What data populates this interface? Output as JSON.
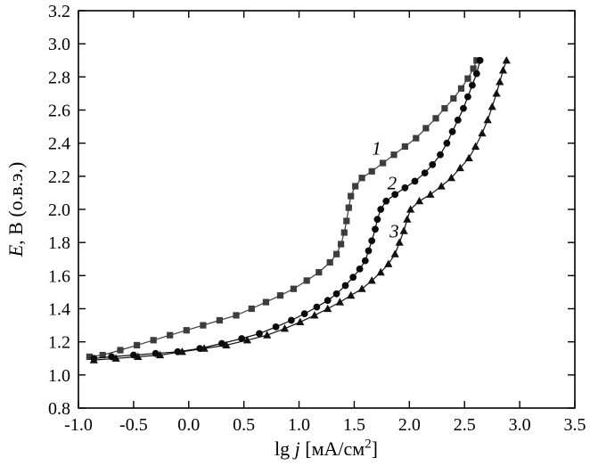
{
  "chart_data": {
    "type": "line",
    "title": "",
    "xlabel": "lg j [мА/см2]",
    "ylabel": "E, В (о.в.э.)",
    "xlim": [
      -1.0,
      3.5
    ],
    "ylim": [
      0.8,
      3.2
    ],
    "xticks": [
      -1.0,
      -0.5,
      0.0,
      0.5,
      1.0,
      1.5,
      2.0,
      2.5,
      3.0,
      3.5
    ],
    "yticks": [
      0.8,
      1.0,
      1.2,
      1.4,
      1.6,
      1.8,
      2.0,
      2.2,
      2.4,
      2.6,
      2.8,
      3.0,
      3.2
    ],
    "grid": false,
    "legend": "none",
    "series": [
      {
        "name": "1",
        "marker": "square",
        "color": "#3d3d3d",
        "points": [
          [
            -0.9,
            1.11
          ],
          [
            -0.78,
            1.12
          ],
          [
            -0.62,
            1.15
          ],
          [
            -0.47,
            1.18
          ],
          [
            -0.32,
            1.21
          ],
          [
            -0.17,
            1.24
          ],
          [
            -0.02,
            1.27
          ],
          [
            0.13,
            1.3
          ],
          [
            0.28,
            1.33
          ],
          [
            0.43,
            1.36
          ],
          [
            0.57,
            1.4
          ],
          [
            0.7,
            1.44
          ],
          [
            0.83,
            1.48
          ],
          [
            0.95,
            1.52
          ],
          [
            1.07,
            1.57
          ],
          [
            1.18,
            1.62
          ],
          [
            1.28,
            1.68
          ],
          [
            1.34,
            1.73
          ],
          [
            1.38,
            1.79
          ],
          [
            1.41,
            1.86
          ],
          [
            1.43,
            1.93
          ],
          [
            1.45,
            2.01
          ],
          [
            1.47,
            2.08
          ],
          [
            1.51,
            2.14
          ],
          [
            1.57,
            2.19
          ],
          [
            1.66,
            2.23
          ],
          [
            1.76,
            2.28
          ],
          [
            1.86,
            2.33
          ],
          [
            1.96,
            2.38
          ],
          [
            2.06,
            2.43
          ],
          [
            2.15,
            2.49
          ],
          [
            2.24,
            2.55
          ],
          [
            2.32,
            2.61
          ],
          [
            2.4,
            2.67
          ],
          [
            2.47,
            2.73
          ],
          [
            2.53,
            2.79
          ],
          [
            2.58,
            2.85
          ],
          [
            2.61,
            2.9
          ]
        ]
      },
      {
        "name": "2",
        "marker": "circle",
        "color": "#0a0a0a",
        "points": [
          [
            -0.86,
            1.1
          ],
          [
            -0.7,
            1.11
          ],
          [
            -0.5,
            1.12
          ],
          [
            -0.3,
            1.13
          ],
          [
            -0.1,
            1.14
          ],
          [
            0.1,
            1.16
          ],
          [
            0.3,
            1.19
          ],
          [
            0.48,
            1.22
          ],
          [
            0.64,
            1.25
          ],
          [
            0.79,
            1.29
          ],
          [
            0.93,
            1.33
          ],
          [
            1.05,
            1.37
          ],
          [
            1.16,
            1.41
          ],
          [
            1.26,
            1.45
          ],
          [
            1.34,
            1.49
          ],
          [
            1.42,
            1.54
          ],
          [
            1.49,
            1.59
          ],
          [
            1.55,
            1.64
          ],
          [
            1.6,
            1.69
          ],
          [
            1.63,
            1.75
          ],
          [
            1.66,
            1.81
          ],
          [
            1.69,
            1.88
          ],
          [
            1.71,
            1.94
          ],
          [
            1.74,
            2.0
          ],
          [
            1.79,
            2.05
          ],
          [
            1.87,
            2.09
          ],
          [
            1.96,
            2.13
          ],
          [
            2.05,
            2.17
          ],
          [
            2.14,
            2.22
          ],
          [
            2.21,
            2.27
          ],
          [
            2.28,
            2.33
          ],
          [
            2.34,
            2.4
          ],
          [
            2.39,
            2.47
          ],
          [
            2.44,
            2.54
          ],
          [
            2.49,
            2.61
          ],
          [
            2.53,
            2.68
          ],
          [
            2.57,
            2.75
          ],
          [
            2.61,
            2.82
          ],
          [
            2.64,
            2.9
          ]
        ]
      },
      {
        "name": "3",
        "marker": "triangle",
        "color": "#111111",
        "points": [
          [
            -0.86,
            1.09
          ],
          [
            -0.66,
            1.1
          ],
          [
            -0.46,
            1.11
          ],
          [
            -0.26,
            1.12
          ],
          [
            -0.06,
            1.14
          ],
          [
            0.14,
            1.16
          ],
          [
            0.34,
            1.18
          ],
          [
            0.53,
            1.21
          ],
          [
            0.71,
            1.24
          ],
          [
            0.87,
            1.28
          ],
          [
            1.01,
            1.32
          ],
          [
            1.14,
            1.36
          ],
          [
            1.26,
            1.4
          ],
          [
            1.37,
            1.44
          ],
          [
            1.47,
            1.48
          ],
          [
            1.57,
            1.52
          ],
          [
            1.66,
            1.57
          ],
          [
            1.74,
            1.62
          ],
          [
            1.81,
            1.67
          ],
          [
            1.87,
            1.73
          ],
          [
            1.91,
            1.8
          ],
          [
            1.95,
            1.87
          ],
          [
            1.98,
            1.94
          ],
          [
            2.01,
            2.0
          ],
          [
            2.09,
            2.05
          ],
          [
            2.19,
            2.09
          ],
          [
            2.29,
            2.14
          ],
          [
            2.38,
            2.19
          ],
          [
            2.46,
            2.25
          ],
          [
            2.54,
            2.31
          ],
          [
            2.6,
            2.38
          ],
          [
            2.66,
            2.46
          ],
          [
            2.71,
            2.54
          ],
          [
            2.75,
            2.62
          ],
          [
            2.79,
            2.7
          ],
          [
            2.82,
            2.77
          ],
          [
            2.85,
            2.84
          ],
          [
            2.88,
            2.9
          ]
        ]
      }
    ],
    "annotations": [
      {
        "text": "1",
        "x": 1.66,
        "y": 2.33
      },
      {
        "text": "2",
        "x": 1.8,
        "y": 2.12
      },
      {
        "text": "3",
        "x": 1.82,
        "y": 1.83
      }
    ]
  },
  "axis": {
    "xlabel_parts": {
      "lg": "lg ",
      "j": "j",
      "open": " [",
      "unit": "мА/см",
      "sup": "2",
      "close": "]"
    },
    "ylabel_parts": {
      "E": "E",
      "rest": ", В (о.в.э.)"
    }
  }
}
